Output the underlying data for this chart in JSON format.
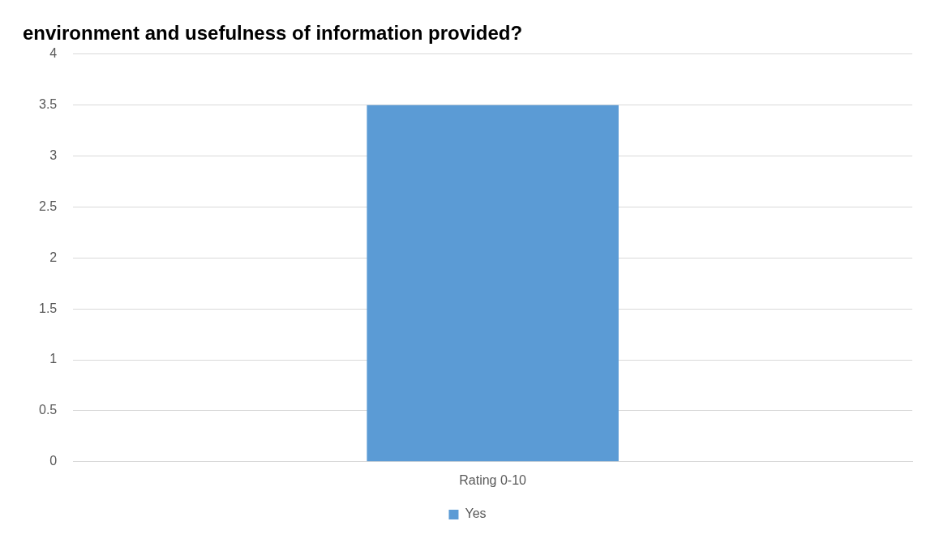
{
  "chart_data": {
    "type": "bar",
    "title": "environment and usefulness of information provided?",
    "categories": [
      "Rating 0-10"
    ],
    "series": [
      {
        "name": "Yes",
        "color": "#5b9bd5",
        "values": [
          3.5
        ]
      }
    ],
    "ylim": [
      0,
      4
    ],
    "yticks": [
      0,
      0.5,
      1,
      1.5,
      2,
      2.5,
      3,
      3.5,
      4
    ],
    "grid": "y",
    "legend": "bottom"
  }
}
